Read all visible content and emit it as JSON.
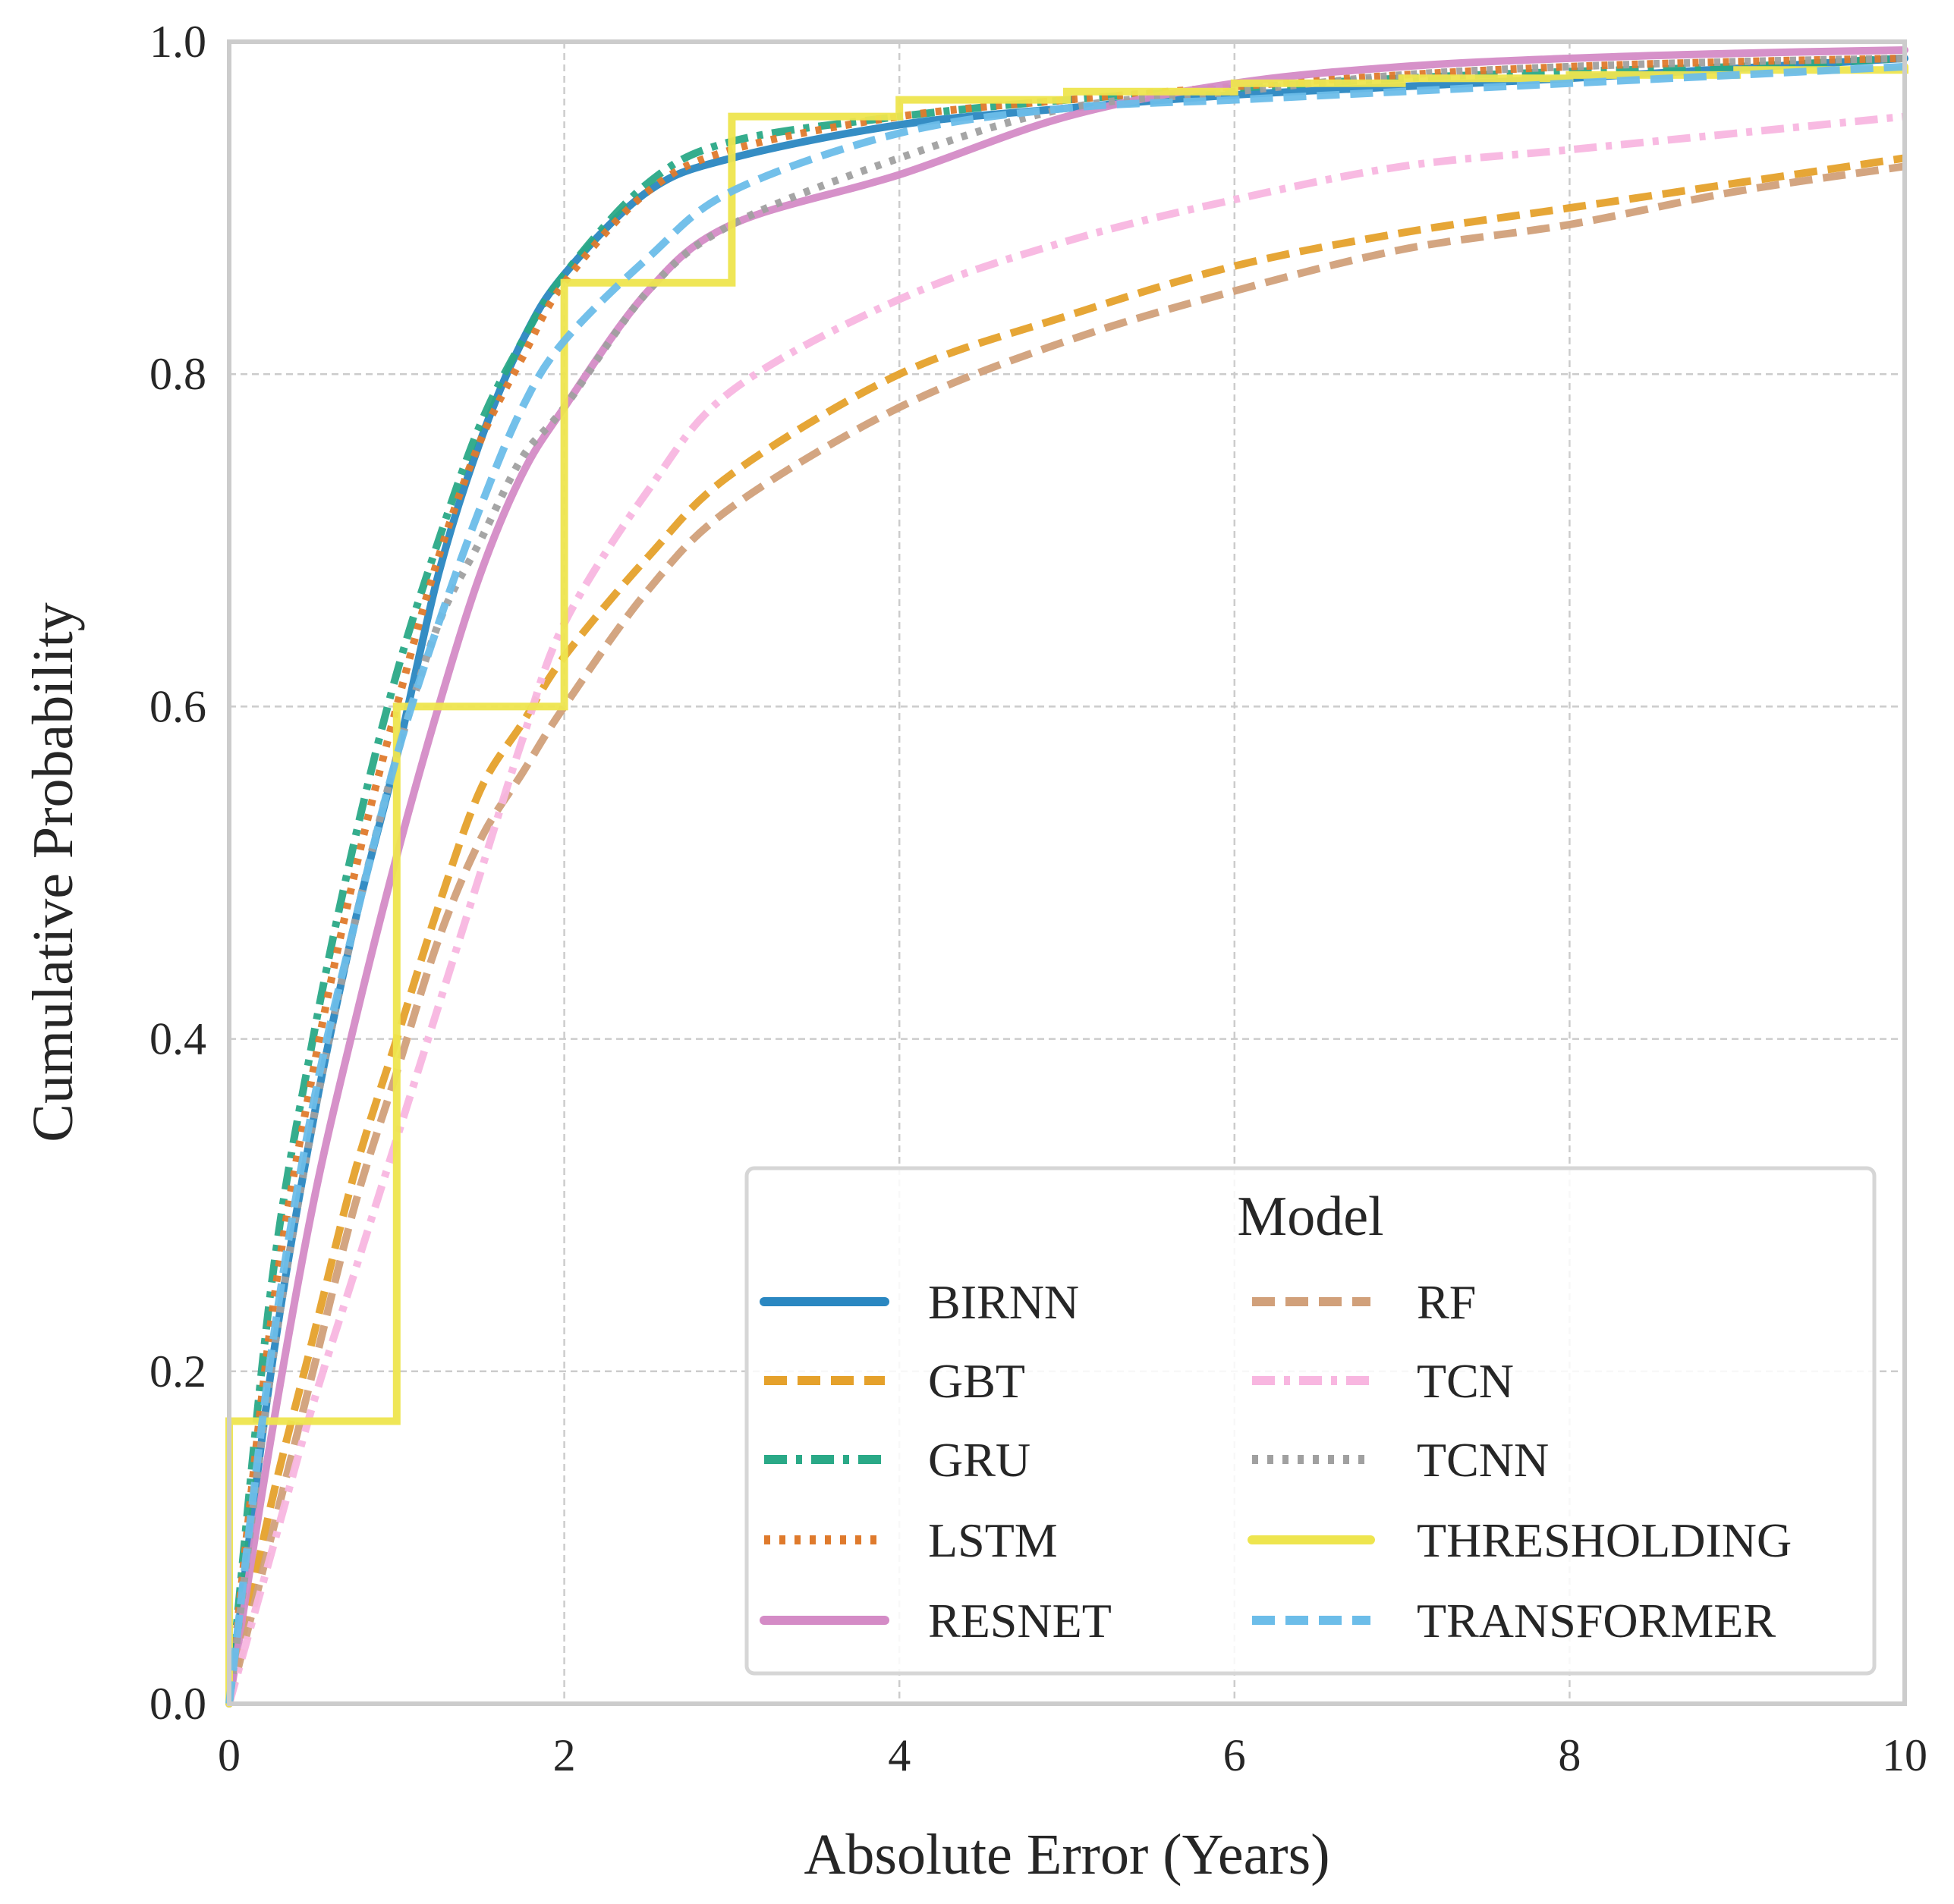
{
  "chart_data": {
    "type": "line",
    "title": "",
    "xlabel": "Absolute Error (Years)",
    "ylabel": "Cumulative Probability",
    "xlim": [
      0,
      10
    ],
    "ylim": [
      0,
      1
    ],
    "xticks": [
      "0",
      "2",
      "4",
      "6",
      "8",
      "10"
    ],
    "yticks": [
      "0.0",
      "0.2",
      "0.4",
      "0.6",
      "0.8",
      "1.0"
    ],
    "grid": true,
    "legend": {
      "title": "Model",
      "placement": "bottom-right",
      "columns": 2
    },
    "series": [
      {
        "name": "BIRNN",
        "color": "#2a87c1",
        "style": "solid",
        "x": [
          0,
          0.25,
          0.5,
          0.75,
          1,
          1.25,
          1.5,
          1.75,
          2,
          2.5,
          3,
          4,
          5,
          6,
          7,
          8,
          9,
          10
        ],
        "y": [
          0,
          0.2,
          0.35,
          0.47,
          0.57,
          0.68,
          0.76,
          0.82,
          0.86,
          0.91,
          0.93,
          0.95,
          0.96,
          0.968,
          0.973,
          0.978,
          0.984,
          0.99
        ]
      },
      {
        "name": "GBT",
        "color": "#e5a12b",
        "style": "dashed",
        "x": [
          0,
          0.25,
          0.5,
          0.75,
          1,
          1.25,
          1.5,
          1.75,
          2,
          2.5,
          3,
          4,
          5,
          6,
          7,
          8,
          9,
          10
        ],
        "y": [
          0,
          0.12,
          0.22,
          0.32,
          0.4,
          0.48,
          0.55,
          0.59,
          0.63,
          0.69,
          0.74,
          0.8,
          0.835,
          0.865,
          0.885,
          0.9,
          0.915,
          0.93
        ]
      },
      {
        "name": "GRU",
        "color": "#2aa987",
        "style": "dashdot",
        "x": [
          0,
          0.25,
          0.5,
          0.75,
          1,
          1.25,
          1.5,
          1.75,
          2,
          2.5,
          3,
          4,
          5,
          6,
          7,
          8,
          9,
          10
        ],
        "y": [
          0,
          0.25,
          0.4,
          0.52,
          0.62,
          0.7,
          0.77,
          0.82,
          0.86,
          0.915,
          0.94,
          0.955,
          0.965,
          0.972,
          0.978,
          0.982,
          0.985,
          0.99
        ]
      },
      {
        "name": "LSTM",
        "color": "#df7a2c",
        "style": "dotted",
        "x": [
          0,
          0.25,
          0.5,
          0.75,
          1,
          1.25,
          1.5,
          1.75,
          2,
          2.5,
          3,
          4,
          5,
          6,
          7,
          8,
          9,
          10
        ],
        "y": [
          0,
          0.23,
          0.38,
          0.5,
          0.6,
          0.69,
          0.76,
          0.81,
          0.855,
          0.91,
          0.935,
          0.955,
          0.965,
          0.973,
          0.98,
          0.985,
          0.988,
          0.99
        ]
      },
      {
        "name": "RESNET",
        "color": "#d48bc6",
        "style": "solid",
        "x": [
          0,
          0.25,
          0.5,
          0.75,
          1,
          1.25,
          1.5,
          1.75,
          2,
          2.5,
          3,
          4,
          5,
          6,
          7,
          8,
          9,
          10
        ],
        "y": [
          0,
          0.16,
          0.3,
          0.41,
          0.51,
          0.6,
          0.68,
          0.74,
          0.78,
          0.85,
          0.89,
          0.92,
          0.955,
          0.975,
          0.985,
          0.99,
          0.993,
          0.995
        ]
      },
      {
        "name": "RF",
        "color": "#d1a07a",
        "style": "dashed",
        "x": [
          0,
          0.25,
          0.5,
          0.75,
          1,
          1.25,
          1.5,
          1.75,
          2,
          2.5,
          3,
          4,
          5,
          6,
          7,
          8,
          9,
          10
        ],
        "y": [
          0,
          0.1,
          0.2,
          0.3,
          0.38,
          0.46,
          0.52,
          0.56,
          0.6,
          0.67,
          0.72,
          0.78,
          0.82,
          0.85,
          0.875,
          0.89,
          0.91,
          0.925
        ]
      },
      {
        "name": "TCN",
        "color": "#f8b6e0",
        "style": "dashdot",
        "x": [
          0,
          0.25,
          0.5,
          0.75,
          1,
          1.25,
          1.5,
          1.75,
          2,
          2.5,
          3,
          4,
          5,
          6,
          7,
          8,
          9,
          10
        ],
        "y": [
          0,
          0.09,
          0.18,
          0.26,
          0.34,
          0.42,
          0.5,
          0.58,
          0.65,
          0.73,
          0.79,
          0.845,
          0.88,
          0.905,
          0.925,
          0.935,
          0.945,
          0.955
        ]
      },
      {
        "name": "TCNN",
        "color": "#a0a0a0",
        "style": "dotted",
        "x": [
          0,
          0.25,
          0.5,
          0.75,
          1,
          1.25,
          1.5,
          1.75,
          2,
          2.5,
          3,
          4,
          5,
          6,
          7,
          8,
          9,
          10
        ],
        "y": [
          0,
          0.2,
          0.35,
          0.47,
          0.57,
          0.65,
          0.7,
          0.75,
          0.78,
          0.85,
          0.89,
          0.93,
          0.96,
          0.97,
          0.98,
          0.985,
          0.988,
          0.99
        ]
      },
      {
        "name": "THRESHOLDING",
        "color": "#eee54e",
        "style": "steps",
        "x": [
          0,
          1,
          2,
          3,
          4,
          5,
          6,
          7,
          8,
          9,
          10
        ],
        "y": [
          0.17,
          0.6,
          0.855,
          0.955,
          0.965,
          0.97,
          0.975,
          0.978,
          0.98,
          0.983,
          0.985
        ]
      },
      {
        "name": "TRANSFORMER",
        "color": "#6cbde9",
        "style": "dashed",
        "x": [
          0,
          0.25,
          0.5,
          0.75,
          1,
          1.25,
          1.5,
          1.75,
          2,
          2.5,
          3,
          4,
          5,
          6,
          7,
          8,
          9,
          10
        ],
        "y": [
          0,
          0.21,
          0.36,
          0.47,
          0.57,
          0.65,
          0.72,
          0.78,
          0.82,
          0.87,
          0.91,
          0.945,
          0.96,
          0.965,
          0.97,
          0.975,
          0.98,
          0.985
        ]
      }
    ]
  }
}
